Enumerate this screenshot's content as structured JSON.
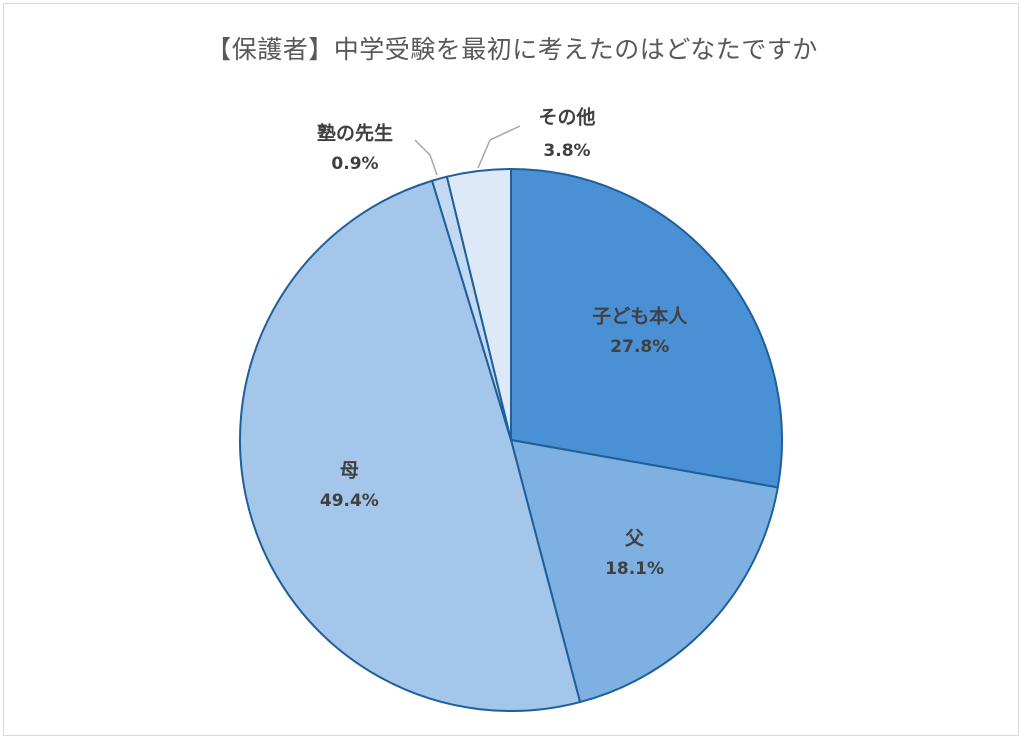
{
  "chart_data": {
    "type": "pie",
    "title": "【保護者】中学受験を最初に考えたのはどなたですか",
    "start_angle_deg": 0,
    "direction": "clockwise",
    "slices": [
      {
        "label": "子ども本人",
        "value": 27.8,
        "value_label": "27.8%",
        "color": "#4a90d4"
      },
      {
        "label": "父",
        "value": 18.1,
        "value_label": "18.1%",
        "color": "#7eb0e2"
      },
      {
        "label": "母",
        "value": 49.4,
        "value_label": "49.4%",
        "color": "#a4c6ea"
      },
      {
        "label": "塾の先生",
        "value": 0.9,
        "value_label": "0.9%",
        "color": "#c3d9f1"
      },
      {
        "label": "その他",
        "value": 3.8,
        "value_label": "3.8%",
        "color": "#dde9f7"
      }
    ],
    "slice_border_color": "#1f5f9a",
    "leader_line_color": "#a6a6a6",
    "label_color": "#404040"
  }
}
